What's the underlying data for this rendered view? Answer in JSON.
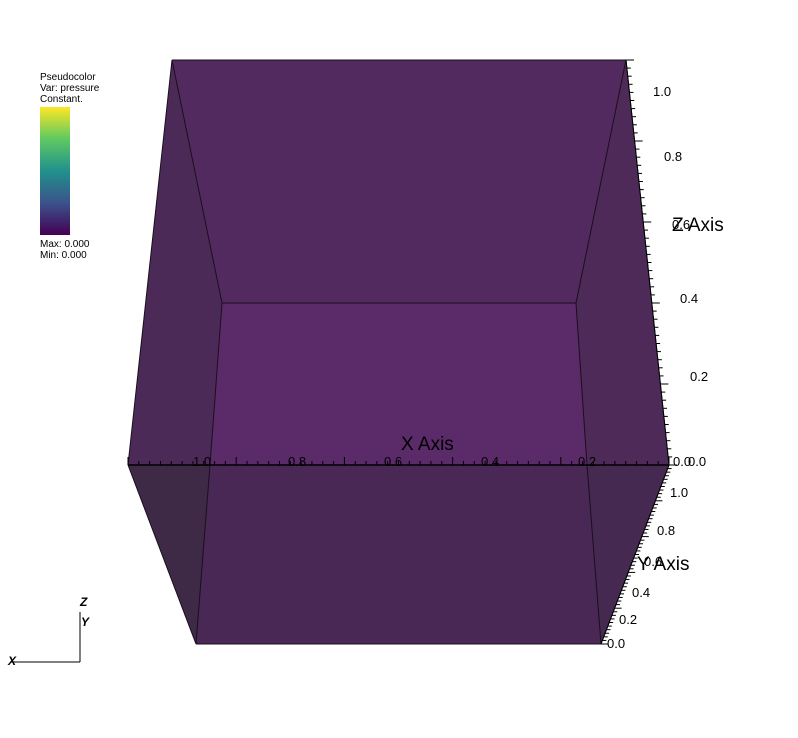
{
  "legend": {
    "plot_type": "Pseudocolor",
    "variable": "Var: pressure",
    "note": "Constant.",
    "max": "Max:  0.000",
    "min": "Min:  0.000",
    "colormap": [
      "#440154",
      "#3b528b",
      "#21918c",
      "#5ec962",
      "#fde725"
    ]
  },
  "axes": {
    "x": {
      "title": "X Axis",
      "tick_labels": [
        "1.0",
        "0.8",
        "0.6",
        "0.4",
        "0.2",
        "0.0"
      ]
    },
    "y": {
      "title": "Y Axis",
      "tick_labels": [
        "1.0",
        "0.8",
        "0.6",
        "0.4",
        "0.2",
        "0.0"
      ]
    },
    "z": {
      "title": "Z Axis",
      "tick_labels": [
        "1.0",
        "0.8",
        "0.6",
        "0.4",
        "0.2",
        "0.0"
      ]
    }
  },
  "triad": {
    "x": "X",
    "y": "Y",
    "z": "Z"
  },
  "colors": {
    "top_face": "#532a5f",
    "floor": "#5b2a69",
    "left_wall": "#4c2a57",
    "right_wall": "#4d2a58",
    "front_face": "#4a2855",
    "left_front": "#3e2a47",
    "right_front": "#452950"
  }
}
